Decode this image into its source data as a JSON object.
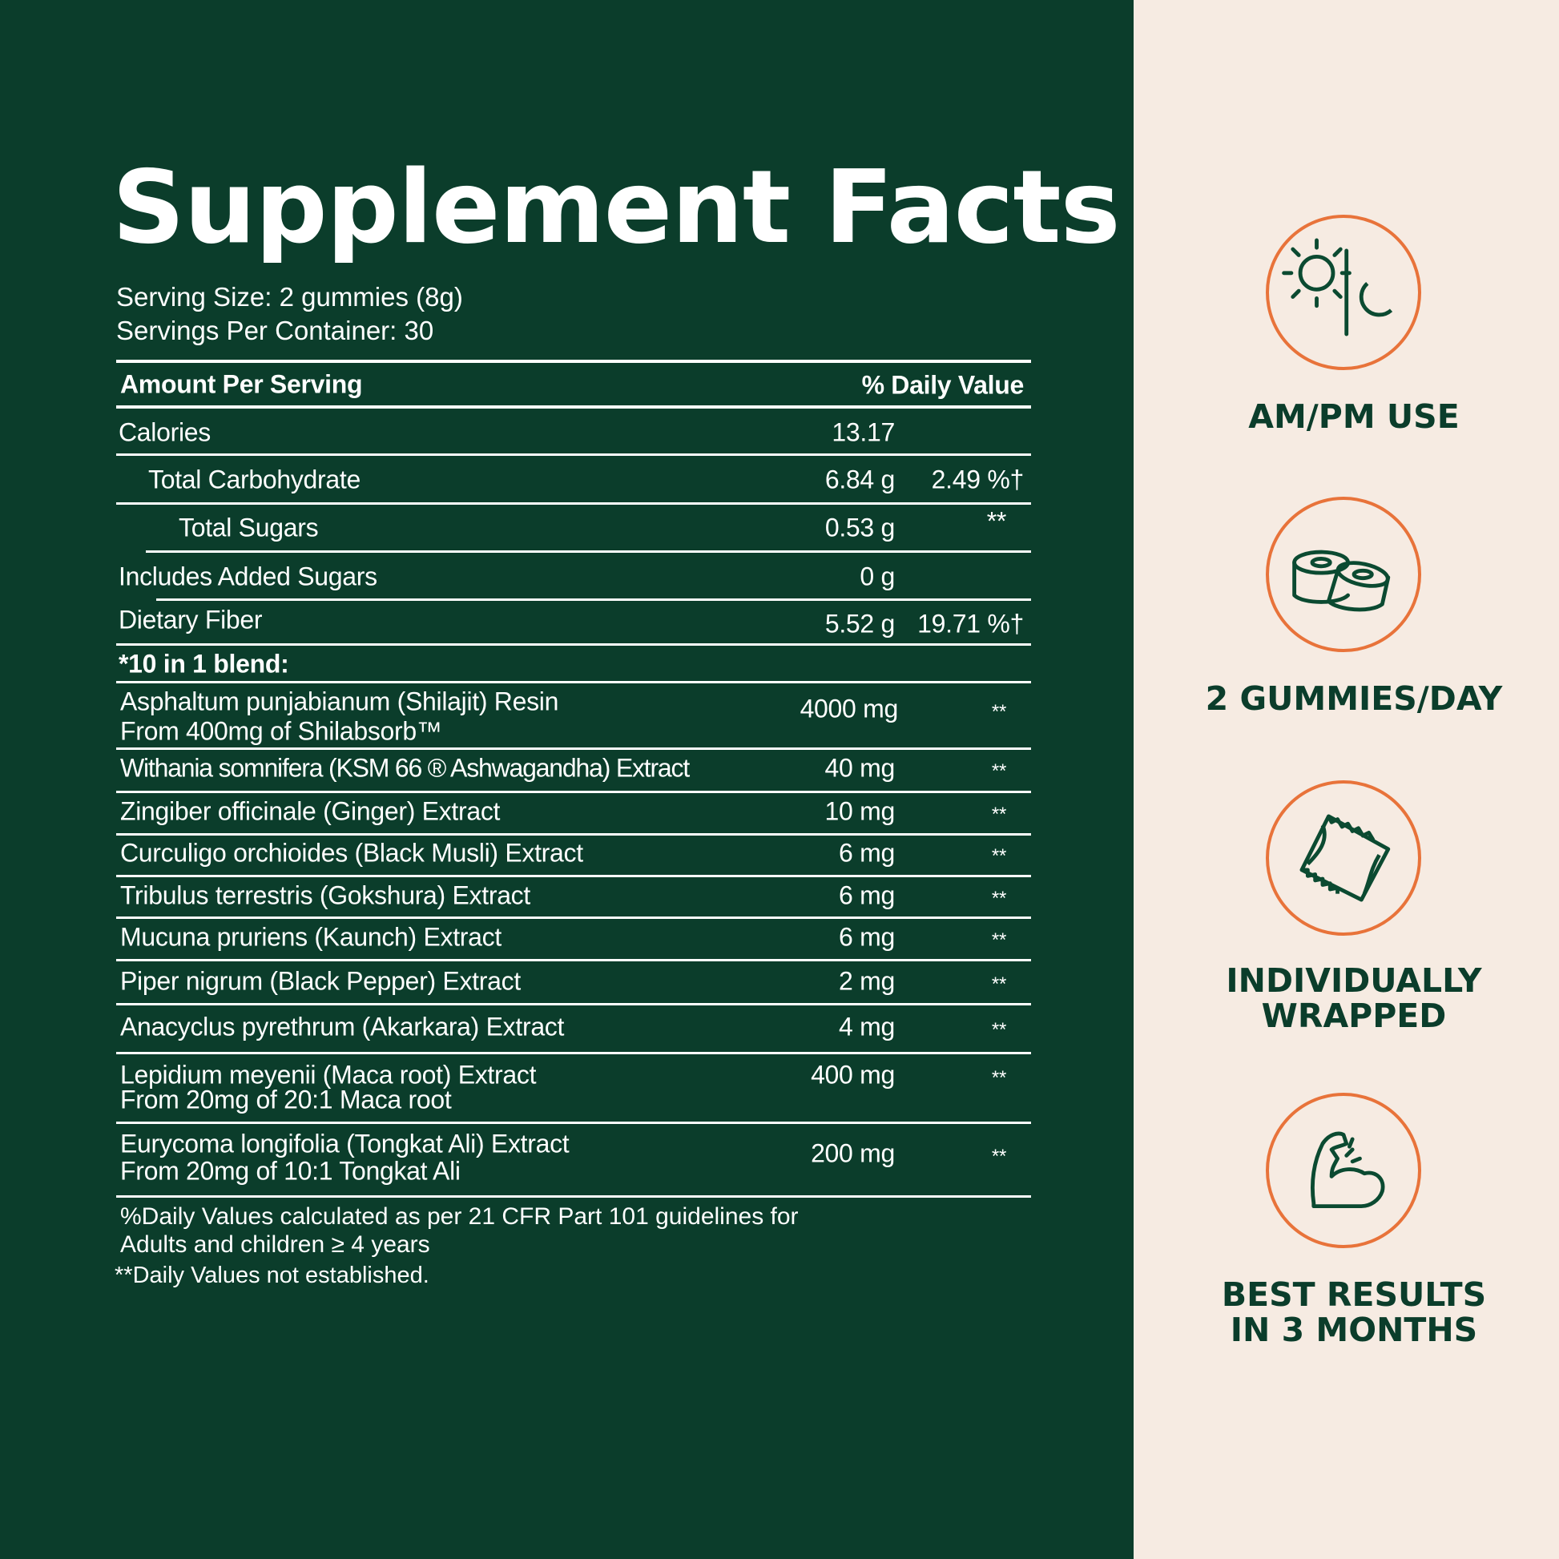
{
  "title": "Supplement Facts",
  "serving_size": "Serving Size: 2 gummies (8g)",
  "servings_per_container": "Servings Per Container: 30",
  "header": {
    "amount": "Amount Per Serving",
    "dv": "% Daily Value"
  },
  "nutrients": [
    {
      "name": "Calories",
      "amount": "13.17",
      "dv": ""
    },
    {
      "name": "Total Carbohydrate",
      "amount": "6.84 g",
      "dv": "2.49 %†"
    },
    {
      "name": "Total Sugars",
      "amount": "0.53 g",
      "dv": "**"
    },
    {
      "name": "Includes Added Sugars",
      "amount": "0 g",
      "dv": ""
    },
    {
      "name": "Dietary Fiber",
      "amount": "5.52 g",
      "dv": "19.71 %†"
    }
  ],
  "blend_label": "*10 in 1 blend:",
  "blend": [
    {
      "name": "Asphaltum punjabianum (Shilajit) Resin",
      "sub": "From 400mg of Shilabsorb™",
      "amount": "4000 mg",
      "dv": "**"
    },
    {
      "name": "Withania somnifera (KSM 66 ® Ashwagandha) Extract",
      "amount": "40 mg",
      "dv": "**"
    },
    {
      "name": "Zingiber officinale (Ginger) Extract",
      "amount": "10 mg",
      "dv": "**"
    },
    {
      "name": "Curculigo orchioides (Black Musli) Extract",
      "amount": "6 mg",
      "dv": "**"
    },
    {
      "name": "Tribulus terrestris (Gokshura) Extract",
      "amount": "6 mg",
      "dv": "**"
    },
    {
      "name": "Mucuna pruriens (Kaunch) Extract",
      "amount": "6 mg",
      "dv": "**"
    },
    {
      "name": "Piper nigrum (Black Pepper) Extract",
      "amount": "2 mg",
      "dv": "**"
    },
    {
      "name": "Anacyclus pyrethrum (Akarkara) Extract",
      "amount": "4 mg",
      "dv": "**"
    },
    {
      "name": "Lepidium meyenii (Maca root) Extract",
      "sub": "From 20mg of 20:1 Maca root",
      "amount": "400 mg",
      "dv": "**"
    },
    {
      "name": "Eurycoma longifolia (Tongkat Ali) Extract",
      "sub": "From 20mg of 10:1 Tongkat Ali",
      "amount": "200 mg",
      "dv": "**"
    }
  ],
  "footnotes": [
    "%Daily Values calculated as per 21 CFR Part 101 guidelines for",
    "Adults and children ≥ 4 years",
    "**Daily Values not established."
  ],
  "features": [
    {
      "icon": "sun-moon-icon",
      "lines": [
        "AM/PM USE"
      ]
    },
    {
      "icon": "gummies-icon",
      "lines": [
        "2 GUMMIES/DAY"
      ]
    },
    {
      "icon": "wrapper-icon",
      "lines": [
        "INDIVIDUALLY",
        "WRAPPED"
      ]
    },
    {
      "icon": "flexed-arm-icon",
      "lines": [
        "BEST RESULTS",
        "IN 3 MONTHS"
      ]
    }
  ],
  "colors": {
    "panel": "#0b3d2b",
    "side": "#f6ebe2",
    "accent": "#e8733a"
  }
}
